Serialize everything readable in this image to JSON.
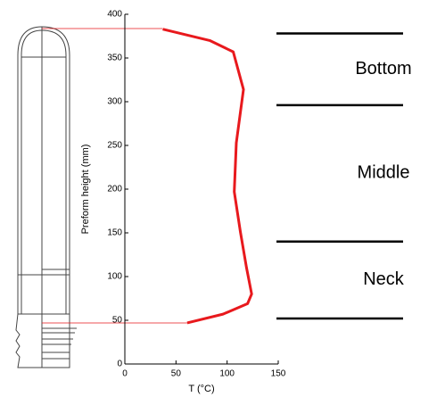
{
  "chart_data": {
    "type": "line",
    "y_label": "Preform height (mm)",
    "x_label": "T (°C)",
    "xlim": [
      0,
      150
    ],
    "xticks": [
      0,
      50,
      100,
      150
    ],
    "ylim": [
      0,
      400
    ],
    "yticks": [
      0,
      50,
      100,
      150,
      200,
      250,
      300,
      350,
      400
    ],
    "series": [
      {
        "color": "#e8191d",
        "x": [
          37,
          83,
          106,
          116,
          109,
          107,
          113,
          119,
          124,
          120,
          96,
          61
        ],
        "values": [
          383,
          370,
          357,
          314,
          253,
          197,
          151,
          110,
          80,
          69,
          57,
          47
        ]
      }
    ],
    "boundaries": [
      378,
      296,
      140,
      52
    ],
    "regions": [
      "Bottom",
      "Middle",
      "Neck"
    ]
  }
}
